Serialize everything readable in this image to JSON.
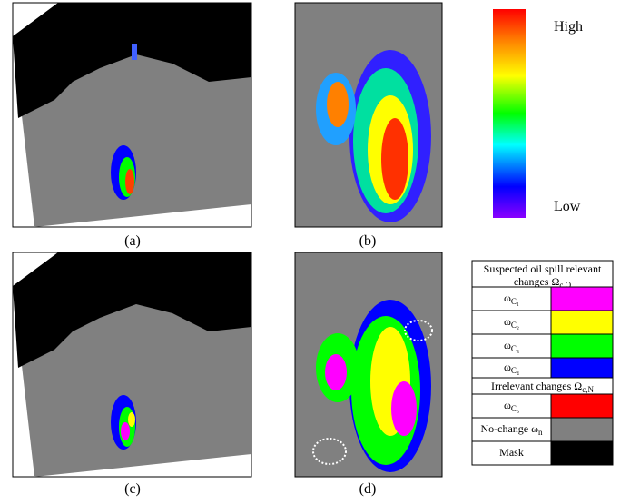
{
  "panels": {
    "a": "(a)",
    "b": "(b)",
    "c": "(c)",
    "d": "(d)"
  },
  "colorbar": {
    "high": "High",
    "low": "Low"
  },
  "legend": {
    "header": {
      "text": "Suspected oil spill relevant changes Ω",
      "sub": "c,O"
    },
    "rows": [
      {
        "symbol": "ω",
        "sub": "C₁",
        "color": "#ff00ff"
      },
      {
        "symbol": "ω",
        "sub": "C₂",
        "color": "#ffff00"
      },
      {
        "symbol": "ω",
        "sub": "C₃",
        "color": "#00ff00"
      },
      {
        "symbol": "ω",
        "sub": "C₄",
        "color": "#0000ff"
      }
    ],
    "header2": {
      "text": "Irrelevant changes Ω",
      "sub": "c,N"
    },
    "rows2": [
      {
        "symbol": "ω",
        "sub": "C₅",
        "color": "#ff0000"
      },
      {
        "symbol": "No-change ω",
        "sub": "n",
        "color": "#808080"
      },
      {
        "symbol": "Mask",
        "sub": "",
        "color": "#000000"
      }
    ]
  }
}
